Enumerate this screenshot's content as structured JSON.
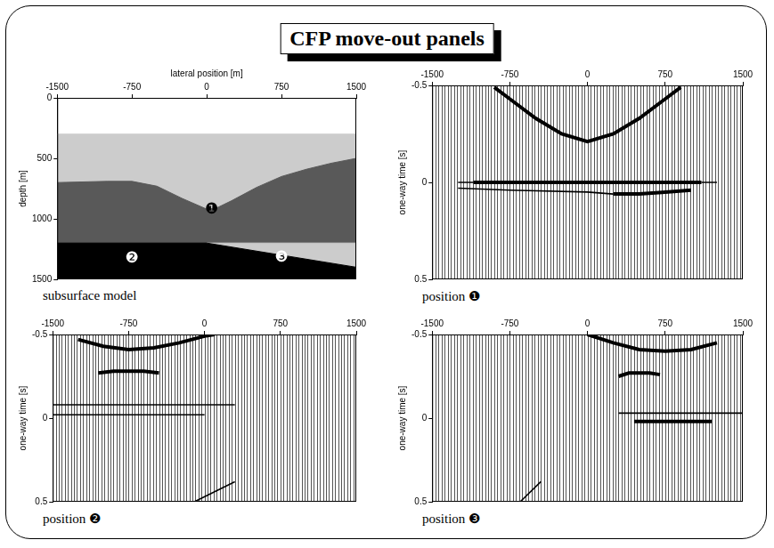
{
  "title": "CFP move-out panels",
  "chart_data": [
    {
      "type": "area",
      "caption": "subsurface model",
      "x_label": "lateral position [m]",
      "y_label": "depth [m]",
      "xlim": [
        -1500,
        1500
      ],
      "xticks": [
        -1500,
        -750,
        0,
        750,
        1500
      ],
      "ylim": [
        1500,
        0
      ],
      "yticks": [
        0,
        500,
        1000,
        1500
      ],
      "grid": false,
      "series": [
        {
          "color": "#cccccc",
          "x": [
            -1500,
            1500
          ],
          "values": [
            300,
            300
          ]
        },
        {
          "color": "#595959",
          "x": [
            -1500,
            -1000,
            -750,
            -500,
            -250,
            0,
            100,
            250,
            500,
            750,
            1000,
            1250,
            1500
          ],
          "values": [
            700,
            690,
            690,
            730,
            830,
            920,
            910,
            850,
            740,
            650,
            590,
            540,
            500
          ]
        },
        {
          "color": "#cccccc",
          "x": [
            0,
            1500
          ],
          "values": [
            1200,
            1200
          ]
        },
        {
          "color": "#000000",
          "x": [
            -1500,
            0,
            1500
          ],
          "values": [
            1200,
            1200,
            1400
          ]
        }
      ],
      "annotations": [
        {
          "text": "❶",
          "x": 50,
          "y": 920,
          "color": "#000000"
        },
        {
          "text": "❷",
          "x": -750,
          "y": 1330,
          "color": "#ffffff"
        },
        {
          "text": "❸",
          "x": 750,
          "y": 1320,
          "color": "#ffffff"
        }
      ]
    },
    {
      "type": "line",
      "caption": "position ❶",
      "y_label": "one-way time [s]",
      "xlim": [
        -1500,
        1500
      ],
      "xticks": [
        -1500,
        -750,
        0,
        750,
        1500
      ],
      "ylim": [
        0.5,
        -0.5
      ],
      "yticks": [
        -0.5,
        0,
        0.5
      ],
      "grid": false,
      "trace_x": [
        -1500,
        -1470,
        -1440,
        -1410,
        -1380,
        -1350,
        -1320,
        -1290,
        -1260,
        -1230,
        -1200,
        -1170,
        -1140,
        -1110,
        -1080,
        -1050,
        -1020,
        -990,
        -960,
        -930,
        -900,
        -870,
        -840,
        -810,
        -780,
        -750,
        -720,
        -690,
        -660,
        -630,
        -600,
        -570,
        -540,
        -510,
        -480,
        -450,
        -420,
        -390,
        -360,
        -330,
        -300,
        -270,
        -240,
        -210,
        -180,
        -150,
        -120,
        -90,
        -60,
        -30,
        0,
        30,
        60,
        90,
        120,
        150,
        180,
        210,
        240,
        270,
        300,
        330,
        360,
        390,
        420,
        450,
        480,
        510,
        540,
        570,
        600,
        630,
        660,
        690,
        720,
        750,
        780,
        810,
        840,
        870,
        900,
        930,
        960,
        990,
        1020,
        1050,
        1080,
        1110,
        1140,
        1170,
        1200,
        1230,
        1260,
        1290,
        1320,
        1350,
        1380,
        1410,
        1440,
        1470,
        1500
      ],
      "series": [
        {
          "color": "#000000",
          "line_style": "thick",
          "x": [
            -900,
            -750,
            -500,
            -250,
            0,
            250,
            500,
            750,
            900
          ],
          "values": [
            -0.49,
            -0.43,
            -0.33,
            -0.25,
            -0.21,
            -0.25,
            -0.33,
            -0.43,
            -0.49
          ]
        },
        {
          "color": "#000000",
          "line_style": "thick",
          "x": [
            -1100,
            1100
          ],
          "values": [
            0,
            0
          ]
        },
        {
          "color": "#000000",
          "line_style": "thin",
          "x": [
            -1250,
            -1100
          ],
          "values": [
            0,
            0
          ]
        },
        {
          "color": "#000000",
          "line_style": "thin",
          "x": [
            1100,
            1250
          ],
          "values": [
            0,
            0
          ]
        },
        {
          "color": "#000000",
          "line_style": "thin",
          "x": [
            -1250,
            -750,
            0,
            250
          ],
          "values": [
            0.03,
            0.04,
            0.05,
            0.06
          ]
        },
        {
          "color": "#000000",
          "line_style": "thick",
          "x": [
            250,
            500,
            750,
            1000
          ],
          "values": [
            0.06,
            0.06,
            0.05,
            0.04
          ]
        }
      ]
    },
    {
      "type": "line",
      "caption": "position ❷",
      "y_label": "one-way time [s]",
      "xlim": [
        -1500,
        1500
      ],
      "xticks": [
        -1500,
        -750,
        0,
        750,
        1500
      ],
      "ylim": [
        0.5,
        -0.5
      ],
      "yticks": [
        -0.5,
        0,
        0.5
      ],
      "grid": false,
      "trace_x": [
        -1500,
        -1470,
        -1440,
        -1410,
        -1380,
        -1350,
        -1320,
        -1290,
        -1260,
        -1230,
        -1200,
        -1170,
        -1140,
        -1110,
        -1080,
        -1050,
        -1020,
        -990,
        -960,
        -930,
        -900,
        -870,
        -840,
        -810,
        -780,
        -750,
        -720,
        -690,
        -660,
        -630,
        -600,
        -570,
        -540,
        -510,
        -480,
        -450,
        -420,
        -390,
        -360,
        -330,
        -300,
        -270,
        -240,
        -210,
        -180,
        -150,
        -120,
        -90,
        -60,
        -30,
        0,
        30,
        60,
        90,
        120,
        150,
        180,
        210,
        240,
        270,
        300,
        330,
        360,
        390,
        420,
        450,
        480,
        510,
        540,
        570,
        600,
        630,
        660,
        690,
        720,
        750,
        780,
        810,
        840,
        870,
        900,
        930,
        960,
        990,
        1020,
        1050,
        1080,
        1110,
        1140,
        1170,
        1200,
        1230,
        1260,
        1290,
        1320,
        1350,
        1380,
        1410,
        1440,
        1470,
        1500
      ],
      "series": [
        {
          "color": "#000000",
          "line_style": "thick",
          "x": [
            -1250,
            -1000,
            -750,
            -500,
            -250,
            0,
            100
          ],
          "values": [
            -0.47,
            -0.43,
            -0.41,
            -0.42,
            -0.45,
            -0.49,
            -0.5
          ]
        },
        {
          "color": "#000000",
          "line_style": "thick",
          "x": [
            -1050,
            -900,
            -750,
            -600,
            -450
          ],
          "values": [
            -0.27,
            -0.28,
            -0.28,
            -0.28,
            -0.27
          ]
        },
        {
          "color": "#000000",
          "line_style": "thin",
          "x": [
            -1500,
            300
          ],
          "values": [
            -0.08,
            -0.08
          ]
        },
        {
          "color": "#000000",
          "line_style": "thin",
          "x": [
            -1500,
            0
          ],
          "values": [
            -0.02,
            -0.02
          ]
        },
        {
          "color": "#000000",
          "line_style": "thin",
          "x": [
            -100,
            300
          ],
          "values": [
            0.5,
            0.38
          ]
        }
      ]
    },
    {
      "type": "line",
      "caption": "position ❸",
      "y_label": "one-way time [s]",
      "xlim": [
        -1500,
        1500
      ],
      "xticks": [
        -1500,
        -750,
        0,
        750,
        1500
      ],
      "ylim": [
        0.5,
        -0.5
      ],
      "yticks": [
        -0.5,
        0,
        0.5
      ],
      "grid": false,
      "trace_x": [
        -1500,
        -1470,
        -1440,
        -1410,
        -1380,
        -1350,
        -1320,
        -1290,
        -1260,
        -1230,
        -1200,
        -1170,
        -1140,
        -1110,
        -1080,
        -1050,
        -1020,
        -990,
        -960,
        -930,
        -900,
        -870,
        -840,
        -810,
        -780,
        -750,
        -720,
        -690,
        -660,
        -630,
        -600,
        -570,
        -540,
        -510,
        -480,
        -450,
        -420,
        -390,
        -360,
        -330,
        -300,
        -270,
        -240,
        -210,
        -180,
        -150,
        -120,
        -90,
        -60,
        -30,
        0,
        30,
        60,
        90,
        120,
        150,
        180,
        210,
        240,
        270,
        300,
        330,
        360,
        390,
        420,
        450,
        480,
        510,
        540,
        570,
        600,
        630,
        660,
        690,
        720,
        750,
        780,
        810,
        840,
        870,
        900,
        930,
        960,
        990,
        1020,
        1050,
        1080,
        1110,
        1140,
        1170,
        1200,
        1230,
        1260,
        1290,
        1320,
        1350,
        1380,
        1410,
        1440,
        1470,
        1500
      ],
      "series": [
        {
          "color": "#000000",
          "line_style": "thick",
          "x": [
            0,
            250,
            500,
            750,
            1000,
            1250
          ],
          "values": [
            -0.5,
            -0.45,
            -0.41,
            -0.4,
            -0.41,
            -0.45
          ]
        },
        {
          "color": "#000000",
          "line_style": "thick",
          "x": [
            300,
            400,
            500,
            600,
            700
          ],
          "values": [
            -0.25,
            -0.27,
            -0.27,
            -0.27,
            -0.26
          ]
        },
        {
          "color": "#000000",
          "line_style": "thin",
          "x": [
            300,
            1500
          ],
          "values": [
            -0.03,
            -0.03
          ]
        },
        {
          "color": "#000000",
          "line_style": "thick",
          "x": [
            450,
            1200
          ],
          "values": [
            0.02,
            0.02
          ]
        },
        {
          "color": "#000000",
          "line_style": "thin",
          "x": [
            -650,
            -450
          ],
          "values": [
            0.5,
            0.38
          ]
        }
      ]
    }
  ]
}
